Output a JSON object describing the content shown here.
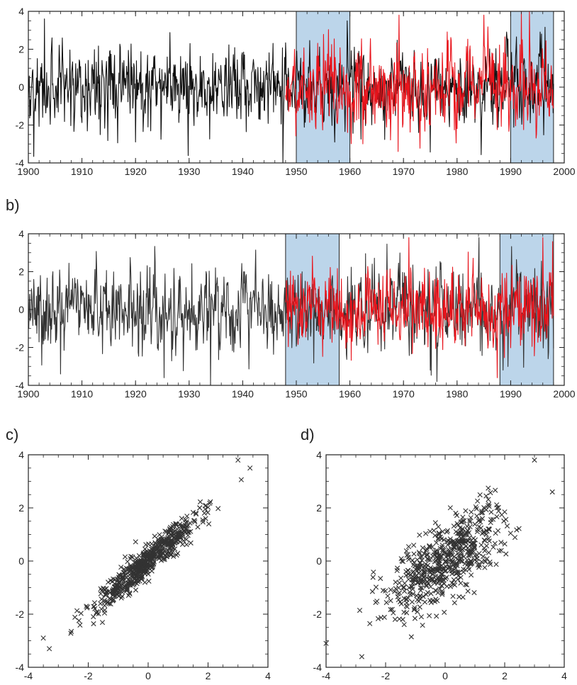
{
  "colors": {
    "shade": "#bcd5ea",
    "black_series": "#111111",
    "red_series": "#e8141c",
    "scatter_marker": "#333333",
    "axis": "#222222"
  },
  "chart_data": [
    {
      "id": "a",
      "type": "line",
      "panel_label": "",
      "xlim": [
        1900,
        2000
      ],
      "ylim": [
        -4,
        4
      ],
      "x_ticks": [
        1900,
        1910,
        1920,
        1930,
        1940,
        1950,
        1960,
        1970,
        1980,
        1990,
        2000
      ],
      "y_ticks": [
        -4,
        -2,
        0,
        2,
        4
      ],
      "shaded_periods": [
        [
          1950,
          1960
        ],
        [
          1990,
          1998
        ]
      ],
      "series": [
        {
          "color": "#111111",
          "x_start": 1900,
          "x_end": 1998,
          "samples_per_year": 12,
          "approx_std": 1.0,
          "notable_values": [
            {
              "x": 1903,
              "y": 3.6
            },
            {
              "x": 1947.5,
              "y": -4.0
            },
            {
              "x": 1959.5,
              "y": 3.5
            }
          ]
        },
        {
          "color": "#e8141c",
          "x_start": 1948,
          "x_end": 1998,
          "samples_per_year": 12,
          "approx_std": 1.1,
          "notable_values": [
            {
              "x": 1969,
              "y": -3.4
            },
            {
              "x": 1992,
              "y": 4.0
            },
            {
              "x": 1993.5,
              "y": 4.0
            }
          ]
        }
      ]
    },
    {
      "id": "b",
      "type": "line",
      "panel_label": "b)",
      "xlim": [
        1900,
        2000
      ],
      "ylim": [
        -4,
        4
      ],
      "x_ticks": [
        1900,
        1910,
        1920,
        1930,
        1940,
        1950,
        1960,
        1970,
        1980,
        1990,
        2000
      ],
      "y_ticks": [
        -4,
        -2,
        0,
        2,
        4
      ],
      "shaded_periods": [
        [
          1948,
          1958
        ],
        [
          1988,
          1998
        ]
      ],
      "series": [
        {
          "color": "#333333",
          "x_start": 1900,
          "x_end": 1998,
          "samples_per_year": 12,
          "approx_std": 1.0,
          "notable_values": [
            {
              "x": 1906,
              "y": -3.4
            },
            {
              "x": 1934,
              "y": -4.0
            },
            {
              "x": 1975,
              "y": -3.2
            }
          ]
        },
        {
          "color": "#e8141c",
          "x_start": 1948,
          "x_end": 1998,
          "samples_per_year": 12,
          "approx_std": 1.0,
          "notable_values": [
            {
              "x": 1971,
              "y": 3.8
            },
            {
              "x": 1987.5,
              "y": -3.6
            },
            {
              "x": 1996,
              "y": 3.8
            }
          ]
        }
      ]
    },
    {
      "id": "c",
      "type": "scatter",
      "panel_label": "c)",
      "xlim": [
        -4,
        4
      ],
      "ylim": [
        -4,
        4
      ],
      "x_ticks": [
        -4,
        -2,
        0,
        2,
        4
      ],
      "y_ticks": [
        -4,
        -2,
        0,
        2,
        4
      ],
      "marker": "x",
      "n_points": 600,
      "approx_correlation": 0.95,
      "notable_points": [
        {
          "x": -3.5,
          "y": -2.9
        },
        {
          "x": -3.3,
          "y": -3.3
        },
        {
          "x": 3.0,
          "y": 3.8
        },
        {
          "x": 3.4,
          "y": 3.5
        }
      ]
    },
    {
      "id": "d",
      "type": "scatter",
      "panel_label": "d)",
      "xlim": [
        -4,
        4
      ],
      "ylim": [
        -4,
        4
      ],
      "x_ticks": [
        -4,
        -2,
        0,
        2,
        4
      ],
      "y_ticks": [
        -4,
        -2,
        0,
        2,
        4
      ],
      "marker": "x",
      "n_points": 600,
      "approx_correlation": 0.7,
      "notable_points": [
        {
          "x": -4.0,
          "y": -3.1
        },
        {
          "x": -2.8,
          "y": -3.6
        },
        {
          "x": 3.6,
          "y": 2.6
        },
        {
          "x": 3.0,
          "y": 3.8
        }
      ]
    }
  ]
}
